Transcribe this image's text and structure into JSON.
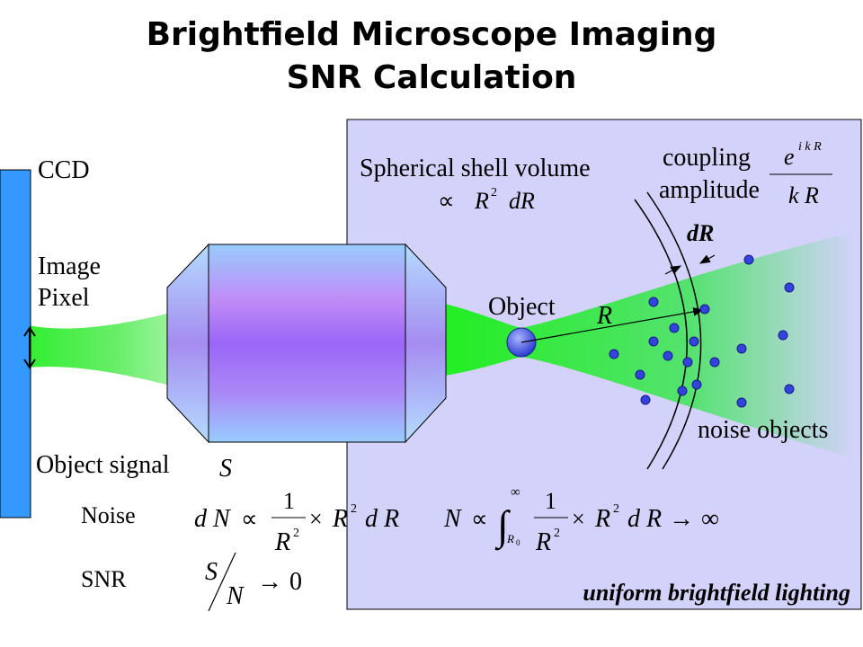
{
  "title": {
    "line1": "Brightfield Microscope Imaging",
    "line2": "SNR Calculation"
  },
  "labels": {
    "ccd": "CCD",
    "image": "Image",
    "pixel": "Pixel",
    "object_signal": "Object signal",
    "signal_symbol": "S",
    "noise": "Noise",
    "snr": "SNR",
    "object": "Object",
    "radius": "R",
    "shell_width": "dR",
    "shell_line1": "Spherical shell volume",
    "shell_prop": "∝",
    "shell_R": "R",
    "shell_sq": "2",
    "shell_dR": "dR",
    "coupling": "coupling",
    "amplitude": "amplitude",
    "exp_e": "e",
    "exp_ikr": "i k R",
    "den_kr": "k R",
    "noise_objects": "noise objects",
    "lighting": "uniform brightfield lighting"
  },
  "eq_noise": {
    "dN": "d N",
    "prop": "∝",
    "one": "1",
    "R": "R",
    "sq": "2",
    "times": "×",
    "R2": "R",
    "sq2": "2",
    "dR": "d R"
  },
  "eq_total": {
    "N": "N",
    "prop": "∝",
    "integral": "∫",
    "upper": "∞",
    "lower": "R",
    "lower_sub": "0",
    "one": "1",
    "R": "R",
    "sq": "2",
    "times": "×",
    "R2": "R",
    "sq2": "2",
    "dR": "d R",
    "arrow": "→",
    "inf": "∞"
  },
  "eq_snr": {
    "S": "S",
    "N": "N",
    "arrow": "→",
    "zero": "0"
  },
  "colors": {
    "panel": "#d2d2fa",
    "ccd": "#3399ff",
    "beam": "#33ee33",
    "dot": "#3344dd",
    "lighting_text": "#000000"
  }
}
